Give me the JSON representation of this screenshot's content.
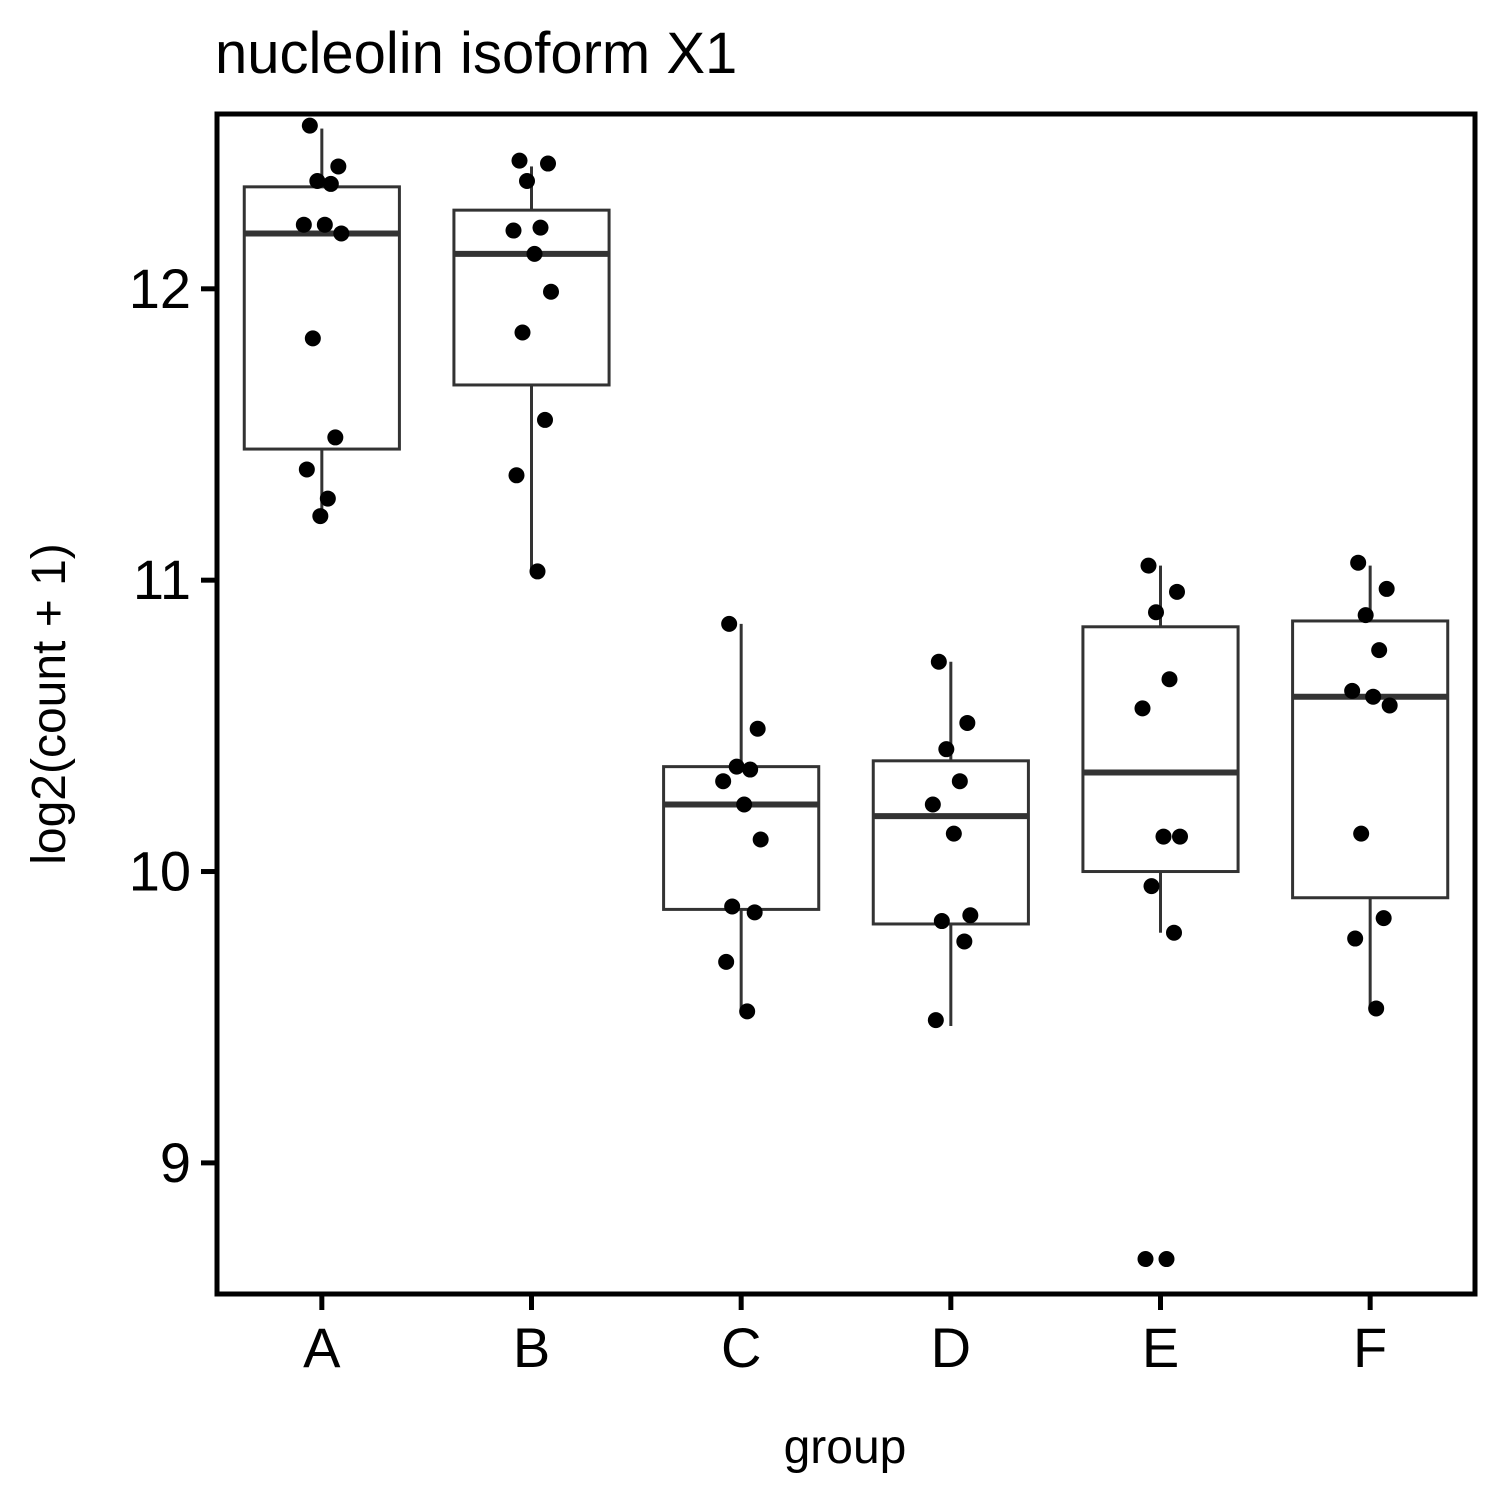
{
  "chart_data": {
    "type": "boxplot",
    "title": "nucleolin isoform X1",
    "xlabel": "group",
    "ylabel": "log2(count + 1)",
    "ylim": [
      8.55,
      12.6
    ],
    "yticks": [
      9,
      10,
      11,
      12
    ],
    "grid": false,
    "legend": "none",
    "categories": [
      "A",
      "B",
      "C",
      "D",
      "E",
      "F"
    ],
    "boxes": [
      {
        "group": "A",
        "whisker_low": 11.22,
        "q1": 11.45,
        "median": 12.19,
        "q3": 12.35,
        "whisker_high": 12.55
      },
      {
        "group": "B",
        "whisker_low": 11.03,
        "q1": 11.67,
        "median": 12.12,
        "q3": 12.27,
        "whisker_high": 12.42
      },
      {
        "group": "C",
        "whisker_low": 9.52,
        "q1": 9.87,
        "median": 10.23,
        "q3": 10.36,
        "whisker_high": 10.85
      },
      {
        "group": "D",
        "whisker_low": 9.47,
        "q1": 9.82,
        "median": 10.19,
        "q3": 10.38,
        "whisker_high": 10.72
      },
      {
        "group": "E",
        "whisker_low": 9.79,
        "q1": 10.0,
        "median": 10.34,
        "q3": 10.84,
        "whisker_high": 11.05
      },
      {
        "group": "F",
        "whisker_low": 9.53,
        "q1": 9.91,
        "median": 10.6,
        "q3": 10.86,
        "whisker_high": 11.05
      }
    ],
    "points": [
      {
        "group": "A",
        "values": [
          12.56,
          12.42,
          12.37,
          12.36,
          12.22,
          12.22,
          12.19,
          11.83,
          11.49,
          11.38,
          11.28,
          11.22
        ]
      },
      {
        "group": "B",
        "values": [
          12.44,
          12.43,
          12.37,
          12.21,
          12.2,
          12.12,
          11.99,
          11.85,
          11.55,
          11.36,
          11.03
        ]
      },
      {
        "group": "C",
        "values": [
          10.85,
          10.49,
          10.36,
          10.35,
          10.31,
          10.23,
          10.11,
          9.88,
          9.86,
          9.69,
          9.52
        ]
      },
      {
        "group": "D",
        "values": [
          10.72,
          10.51,
          10.42,
          10.31,
          10.23,
          10.13,
          9.85,
          9.83,
          9.76,
          9.49
        ]
      },
      {
        "group": "E",
        "values": [
          11.05,
          10.96,
          10.89,
          10.66,
          10.56,
          10.12,
          10.12,
          9.95,
          9.79,
          8.67,
          8.67
        ]
      },
      {
        "group": "F",
        "values": [
          11.06,
          10.97,
          10.88,
          10.76,
          10.62,
          10.6,
          10.57,
          10.13,
          9.84,
          9.77,
          9.53
        ]
      }
    ]
  }
}
